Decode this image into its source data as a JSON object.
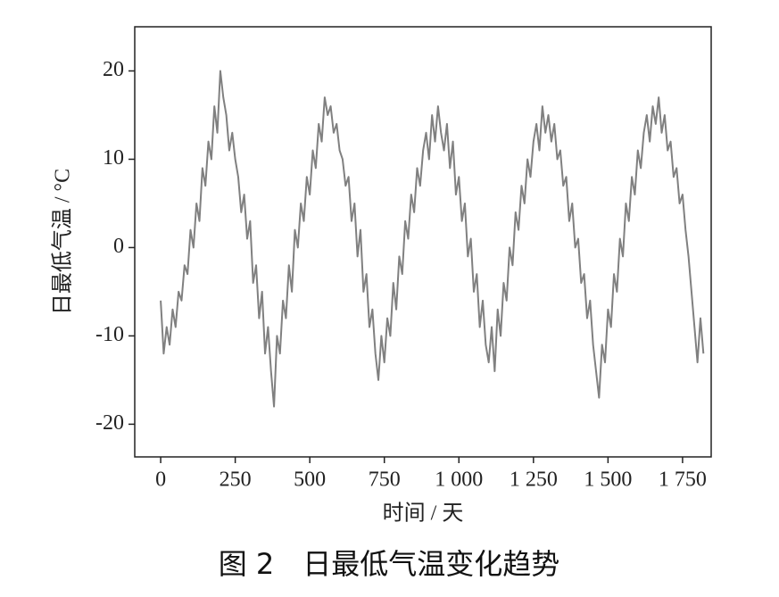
{
  "chart_data": {
    "type": "line",
    "title": "图 2　日最低气温变化趋势",
    "xlabel": "时间 / 天",
    "ylabel": "日最低气温 / °C",
    "xlim": [
      -87,
      1846
    ],
    "ylim": [
      -23.7,
      25
    ],
    "xticks": [
      0,
      250,
      500,
      750,
      {
        "value": 1000,
        "label": "1 000"
      },
      {
        "value": 1250,
        "label": "1 250"
      },
      {
        "value": 1500,
        "label": "1 500"
      },
      {
        "value": 1750,
        "label": "1 750"
      }
    ],
    "yticks": [
      -20,
      -10,
      0,
      10,
      20
    ],
    "color": "#808080",
    "x": [
      0,
      10,
      20,
      30,
      40,
      50,
      60,
      70,
      80,
      90,
      100,
      110,
      120,
      130,
      140,
      150,
      160,
      170,
      180,
      190,
      200,
      210,
      220,
      230,
      240,
      250,
      260,
      270,
      280,
      290,
      300,
      310,
      320,
      330,
      340,
      350,
      360,
      370,
      380,
      390,
      400,
      410,
      420,
      430,
      440,
      450,
      460,
      470,
      480,
      490,
      500,
      510,
      520,
      530,
      540,
      550,
      560,
      570,
      580,
      590,
      600,
      610,
      620,
      630,
      640,
      650,
      660,
      670,
      680,
      690,
      700,
      710,
      720,
      730,
      740,
      750,
      760,
      770,
      780,
      790,
      800,
      810,
      820,
      830,
      840,
      850,
      860,
      870,
      880,
      890,
      900,
      910,
      920,
      930,
      940,
      950,
      960,
      970,
      980,
      990,
      1000,
      1010,
      1020,
      1030,
      1040,
      1050,
      1060,
      1070,
      1080,
      1090,
      1100,
      1110,
      1120,
      1130,
      1140,
      1150,
      1160,
      1170,
      1180,
      1190,
      1200,
      1210,
      1220,
      1230,
      1240,
      1250,
      1260,
      1270,
      1280,
      1290,
      1300,
      1310,
      1320,
      1330,
      1340,
      1350,
      1360,
      1370,
      1380,
      1390,
      1400,
      1410,
      1420,
      1430,
      1440,
      1450,
      1460,
      1470,
      1480,
      1490,
      1500,
      1510,
      1520,
      1530,
      1540,
      1550,
      1560,
      1570,
      1580,
      1590,
      1600,
      1610,
      1620,
      1630,
      1640,
      1650,
      1660,
      1670,
      1680,
      1690,
      1700,
      1710,
      1720,
      1730,
      1740,
      1750,
      1760,
      1770,
      1780,
      1790,
      1800,
      1810,
      1820
    ],
    "values": [
      -6,
      -12,
      -9,
      -11,
      -7,
      -9,
      -5,
      -6,
      -2,
      -3,
      2,
      0,
      5,
      3,
      9,
      7,
      12,
      10,
      16,
      13,
      20,
      17,
      15,
      11,
      13,
      10,
      8,
      4,
      6,
      1,
      3,
      -4,
      -2,
      -8,
      -5,
      -12,
      -9,
      -14,
      -18,
      -10,
      -12,
      -6,
      -8,
      -2,
      -5,
      2,
      0,
      5,
      3,
      8,
      6,
      11,
      9,
      14,
      12,
      17,
      15,
      16,
      13,
      14,
      11,
      10,
      7,
      8,
      3,
      5,
      -1,
      2,
      -5,
      -3,
      -9,
      -7,
      -12,
      -15,
      -10,
      -13,
      -8,
      -10,
      -4,
      -7,
      -1,
      -3,
      3,
      1,
      6,
      4,
      9,
      7,
      11,
      13,
      10,
      15,
      12,
      16,
      13,
      11,
      14,
      9,
      12,
      6,
      8,
      3,
      5,
      -1,
      1,
      -5,
      -3,
      -9,
      -6,
      -11,
      -13,
      -9,
      -14,
      -7,
      -10,
      -4,
      -6,
      0,
      -2,
      4,
      2,
      7,
      5,
      10,
      8,
      12,
      14,
      11,
      16,
      13,
      15,
      12,
      14,
      10,
      11,
      7,
      8,
      3,
      5,
      0,
      1,
      -4,
      -3,
      -8,
      -6,
      -11,
      -14,
      -17,
      -11,
      -13,
      -7,
      -9,
      -3,
      -5,
      1,
      -1,
      5,
      3,
      8,
      6,
      11,
      9,
      13,
      15,
      12,
      16,
      14,
      17,
      13,
      15,
      11,
      12,
      8,
      9,
      5,
      6,
      2,
      -1,
      -5,
      -9,
      -13,
      -8,
      -12
    ]
  }
}
